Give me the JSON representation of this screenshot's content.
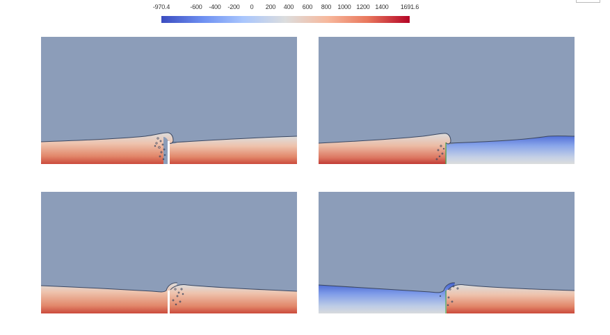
{
  "colorbar": {
    "ticks": [
      "-970.4",
      "-600",
      "-400",
      "-200",
      "0",
      "200",
      "400",
      "600",
      "800",
      "1000",
      "1200",
      "1400",
      "1691.6"
    ],
    "tick_values": [
      -970.4,
      -600,
      -400,
      -200,
      0,
      200,
      400,
      600,
      800,
      1000,
      1200,
      1400,
      1691.6
    ],
    "min": -970.4,
    "max": 1691.6,
    "colormap": "cool-to-warm",
    "colors": [
      "#3b4cc0",
      "#6f91f2",
      "#a9c6fd",
      "#dcdddd",
      "#f7b89c",
      "#e9785d",
      "#b40426"
    ]
  },
  "panels": [
    {
      "id": "top-left",
      "gas_color": "#8c9db9",
      "gradient": "warm",
      "gate": "open-gap"
    },
    {
      "id": "top-right",
      "gas_color": "#8c9db9",
      "gradient": "warm-left-cool-right",
      "gate": "green-line"
    },
    {
      "id": "bottom-left",
      "gas_color": "#8c9db9",
      "gradient": "warm",
      "gate": "open-gap"
    },
    {
      "id": "bottom-right",
      "gas_color": "#8c9db9",
      "gradient": "cool-left-warm-right",
      "gate": "green-line"
    }
  ]
}
